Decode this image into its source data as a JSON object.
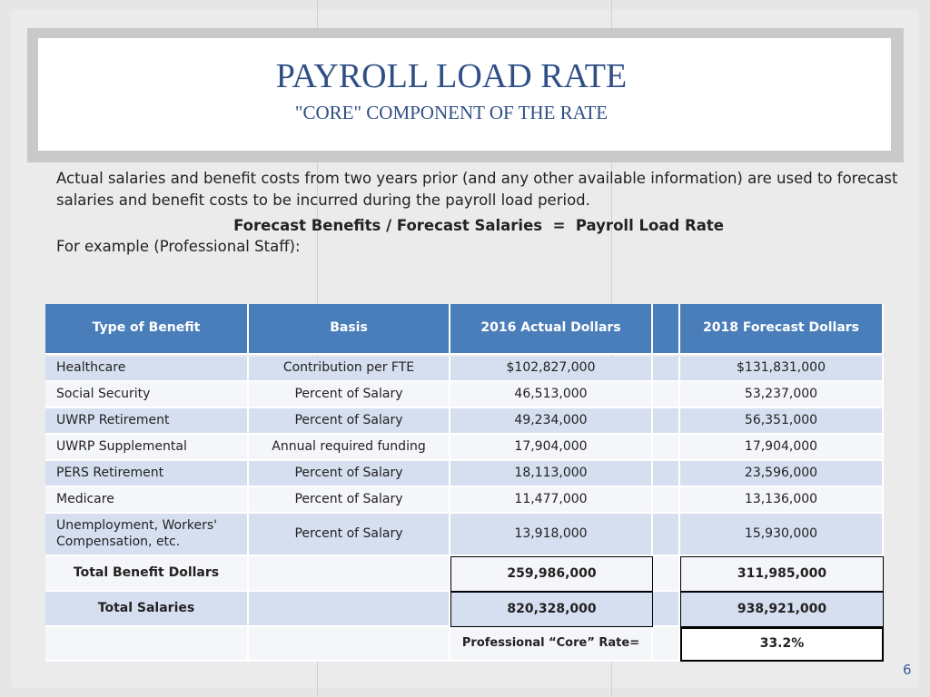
{
  "header": {
    "title": "PAYROLL LOAD RATE",
    "subtitle": "\"CORE\" COMPONENT OF THE RATE"
  },
  "body": {
    "paragraph": "Actual salaries and benefit costs from two years prior (and any other available information) are used to forecast salaries and benefit costs to be incurred during the payroll load period.",
    "formula": "Forecast Benefits / Forecast Salaries  =  Payroll Load Rate",
    "example": "For example (Professional Staff):"
  },
  "table": {
    "columns": [
      "Type of Benefit",
      "Basis",
      "2016 Actual Dollars",
      "2018 Forecast Dollars"
    ],
    "rows": [
      [
        "Healthcare",
        "Contribution per FTE",
        "$102,827,000",
        "$131,831,000"
      ],
      [
        "Social Security",
        "Percent of Salary",
        "46,513,000",
        "53,237,000"
      ],
      [
        "UWRP Retirement",
        "Percent of Salary",
        "49,234,000",
        "56,351,000"
      ],
      [
        "UWRP Supplemental",
        "Annual required funding",
        "17,904,000",
        "17,904,000"
      ],
      [
        "PERS Retirement",
        "Percent of Salary",
        "18,113,000",
        "23,596,000"
      ],
      [
        "Medicare",
        "Percent of Salary",
        "11,477,000",
        "13,136,000"
      ],
      [
        "Unemployment, Workers' Compensation, etc.",
        "Percent of Salary",
        "13,918,000",
        "15,930,000"
      ]
    ],
    "totals": [
      {
        "label": "Total Benefit Dollars",
        "actual_2016": "259,986,000",
        "forecast_2018": "311,985,000"
      },
      {
        "label": "Total Salaries",
        "actual_2016": "820,328,000",
        "forecast_2018": "938,921,000"
      }
    ],
    "rate": {
      "label": "Professional  “Core” Rate=",
      "value": "33.2%"
    }
  },
  "page_number": "6"
}
